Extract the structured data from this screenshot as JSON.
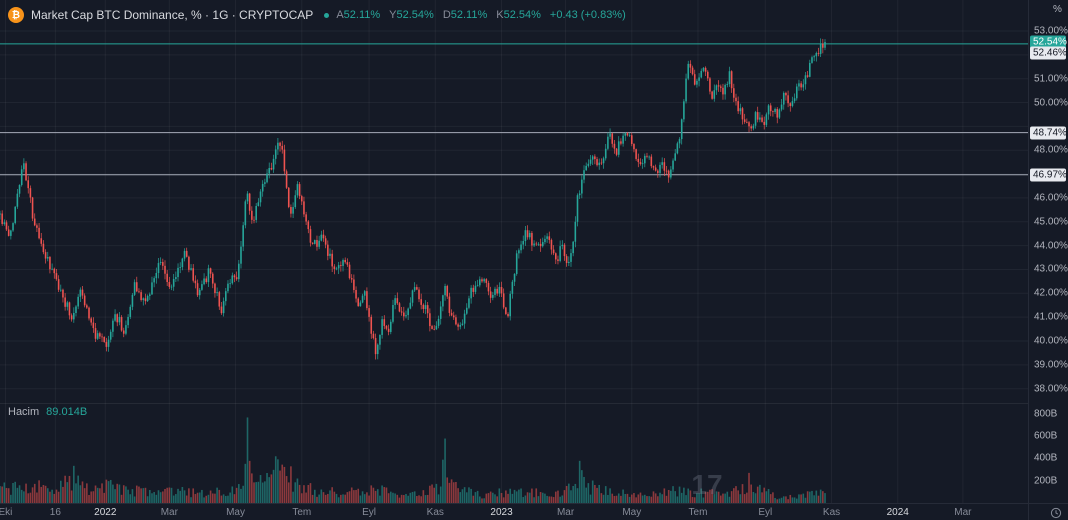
{
  "theme": {
    "bg": "#151a26",
    "grid": "rgba(255,255,255,0.05)",
    "up": "#26a69a",
    "down": "#ef5350",
    "up_vol": "rgba(38,166,154,0.55)",
    "down_vol": "rgba(239,83,80,0.55)",
    "axis_text": "#b2b5be",
    "muted_text": "#868b98",
    "title_text": "#d8dadf",
    "year_text": "#d8dadf",
    "accent": "#26a69a",
    "neutral_line": "#a6abb8",
    "label_bg": "#e8eaef",
    "label_text": "#131722",
    "axis_border": "#262b38",
    "btc_orange": "#f7931a",
    "watermark": "rgba(135,143,160,0.3)"
  },
  "legend": {
    "icon_glyph": "₿",
    "symbol_title": "Market Cap BTC Dominance, % · 1G · CRYPTOCAP",
    "ohlc": {
      "open_label": "A",
      "open": "52.11%",
      "high_label": "Y",
      "high": "52.54%",
      "low_label": "D",
      "low": "52.11%",
      "close_label": "K",
      "close": "52.54%",
      "change": "+0.43 (+0.83%)"
    }
  },
  "volume_pane": {
    "label": "Hacim",
    "value": "89.014B"
  },
  "watermark": {
    "text": "17"
  },
  "price_axis": {
    "unit": "%",
    "ticks": [
      "53.00%",
      "52.00%",
      "51.00%",
      "50.00%",
      "49.00%",
      "48.00%",
      "47.00%",
      "46.00%",
      "45.00%",
      "44.00%",
      "43.00%",
      "42.00%",
      "41.00%",
      "40.00%",
      "39.00%",
      "38.00%"
    ],
    "volume_ticks": [
      "800B",
      "600B",
      "400B",
      "200B"
    ],
    "current_label": "52.54%"
  },
  "chart_data": {
    "type": "candlestick",
    "title": "Market Cap BTC Dominance",
    "symbol": "CRYPTOCAP",
    "interval": "1G",
    "unit": "%",
    "x_range": [
      "2021-09-26",
      "2024-04-30"
    ],
    "ylim": [
      37.4,
      54.3
    ],
    "current_price": 52.54,
    "ohlc_last": {
      "open": 52.11,
      "high": 52.54,
      "low": 52.11,
      "close": 52.54,
      "change": 0.43,
      "change_pct": 0.83
    },
    "price_lines": [
      {
        "value": 52.46,
        "label": "52.46%",
        "color": "#26a69a"
      },
      {
        "value": 48.74,
        "label": "48.74%",
        "color": "#a6abb8"
      },
      {
        "value": 46.97,
        "label": "46.97%",
        "color": "#a6abb8"
      }
    ],
    "series_waypoints": [
      [
        "2021-09-26",
        45.3
      ],
      [
        "2021-10-05",
        44.2
      ],
      [
        "2021-10-17",
        47.6
      ],
      [
        "2021-10-28",
        44.8
      ],
      [
        "2021-11-09",
        43.3
      ],
      [
        "2021-11-20",
        42.2
      ],
      [
        "2021-12-01",
        41.0
      ],
      [
        "2021-12-09",
        42.2
      ],
      [
        "2021-12-22",
        40.3
      ],
      [
        "2022-01-03",
        39.7
      ],
      [
        "2022-01-10",
        41.2
      ],
      [
        "2022-01-19",
        40.3
      ],
      [
        "2022-01-28",
        42.4
      ],
      [
        "2022-02-07",
        41.6
      ],
      [
        "2022-02-20",
        43.4
      ],
      [
        "2022-03-02",
        42.2
      ],
      [
        "2022-03-15",
        43.7
      ],
      [
        "2022-03-27",
        42.1
      ],
      [
        "2022-04-07",
        42.9
      ],
      [
        "2022-04-18",
        41.3
      ],
      [
        "2022-04-26",
        42.5
      ],
      [
        "2022-05-03",
        42.8
      ],
      [
        "2022-05-11",
        46.3
      ],
      [
        "2022-05-16",
        44.9
      ],
      [
        "2022-05-25",
        46.6
      ],
      [
        "2022-06-02",
        47.3
      ],
      [
        "2022-06-12",
        48.45
      ],
      [
        "2022-06-20",
        45.1
      ],
      [
        "2022-06-27",
        46.4
      ],
      [
        "2022-07-10",
        43.9
      ],
      [
        "2022-07-20",
        44.4
      ],
      [
        "2022-08-01",
        42.8
      ],
      [
        "2022-08-10",
        43.3
      ],
      [
        "2022-08-22",
        41.5
      ],
      [
        "2022-08-28",
        42.0
      ],
      [
        "2022-09-07",
        39.4
      ],
      [
        "2022-09-13",
        40.9
      ],
      [
        "2022-09-18",
        40.2
      ],
      [
        "2022-09-25",
        41.8
      ],
      [
        "2022-10-04",
        41.0
      ],
      [
        "2022-10-13",
        42.4
      ],
      [
        "2022-10-22",
        41.4
      ],
      [
        "2022-11-01",
        40.3
      ],
      [
        "2022-11-09",
        42.3
      ],
      [
        "2022-11-16",
        41.0
      ],
      [
        "2022-11-25",
        40.6
      ],
      [
        "2022-12-05",
        42.2
      ],
      [
        "2022-12-15",
        42.6
      ],
      [
        "2022-12-23",
        41.8
      ],
      [
        "2022-12-30",
        42.2
      ],
      [
        "2023-01-06",
        40.9
      ],
      [
        "2023-01-15",
        43.5
      ],
      [
        "2023-01-24",
        44.6
      ],
      [
        "2023-02-02",
        43.9
      ],
      [
        "2023-02-12",
        44.4
      ],
      [
        "2023-02-21",
        43.3
      ],
      [
        "2023-02-25",
        44.0
      ],
      [
        "2023-03-05",
        43.1
      ],
      [
        "2023-03-12",
        45.9
      ],
      [
        "2023-03-20",
        47.4
      ],
      [
        "2023-03-26",
        47.9
      ],
      [
        "2023-04-02",
        47.2
      ],
      [
        "2023-04-11",
        48.7
      ],
      [
        "2023-04-17",
        48.0
      ],
      [
        "2023-04-25",
        48.7
      ],
      [
        "2023-05-02",
        48.2
      ],
      [
        "2023-05-08",
        47.4
      ],
      [
        "2023-05-16",
        47.9
      ],
      [
        "2023-05-22",
        47.0
      ],
      [
        "2023-05-29",
        47.5
      ],
      [
        "2023-06-03",
        46.9
      ],
      [
        "2023-06-09",
        47.5
      ],
      [
        "2023-06-14",
        48.5
      ],
      [
        "2023-06-18",
        50.0
      ],
      [
        "2023-06-22",
        51.8
      ],
      [
        "2023-06-27",
        50.9
      ],
      [
        "2023-07-03",
        51.3
      ],
      [
        "2023-07-08",
        51.5
      ],
      [
        "2023-07-14",
        50.2
      ],
      [
        "2023-07-19",
        50.9
      ],
      [
        "2023-07-25",
        50.4
      ],
      [
        "2023-07-30",
        51.1
      ],
      [
        "2023-08-06",
        49.9
      ],
      [
        "2023-08-12",
        49.2
      ],
      [
        "2023-08-19",
        48.9
      ],
      [
        "2023-08-24",
        49.5
      ],
      [
        "2023-08-30",
        49.1
      ],
      [
        "2023-09-05",
        49.9
      ],
      [
        "2023-09-12",
        49.5
      ],
      [
        "2023-09-18",
        50.3
      ],
      [
        "2023-09-25",
        50.0
      ],
      [
        "2023-10-01",
        50.7
      ],
      [
        "2023-10-07",
        51.0
      ],
      [
        "2023-10-12",
        51.5
      ],
      [
        "2023-10-17",
        52.1
      ],
      [
        "2023-10-21",
        52.3
      ],
      [
        "2023-10-26",
        52.54
      ]
    ],
    "volume": {
      "unit": "B",
      "ylim": [
        0,
        880
      ],
      "last": 89.014,
      "waypoints": [
        [
          "2021-09-26",
          130
        ],
        [
          "2021-10-20",
          150
        ],
        [
          "2021-11-15",
          120
        ],
        [
          "2021-12-04",
          230
        ],
        [
          "2021-12-20",
          110
        ],
        [
          "2022-01-06",
          150
        ],
        [
          "2022-01-25",
          120
        ],
        [
          "2022-02-15",
          95
        ],
        [
          "2022-03-10",
          105
        ],
        [
          "2022-04-10",
          85
        ],
        [
          "2022-05-06",
          150
        ],
        [
          "2022-05-09",
          170
        ],
        [
          "2022-05-12",
          800
        ],
        [
          "2022-05-15",
          210
        ],
        [
          "2022-05-22",
          160
        ],
        [
          "2022-06-13",
          330
        ],
        [
          "2022-06-25",
          170
        ],
        [
          "2022-07-15",
          110
        ],
        [
          "2022-08-10",
          95
        ],
        [
          "2022-09-07",
          120
        ],
        [
          "2022-09-25",
          80
        ],
        [
          "2022-10-15",
          70
        ],
        [
          "2022-11-06",
          140
        ],
        [
          "2022-11-09",
          560
        ],
        [
          "2022-11-10",
          540
        ],
        [
          "2022-11-13",
          170
        ],
        [
          "2022-11-22",
          120
        ],
        [
          "2022-12-10",
          75
        ],
        [
          "2023-01-10",
          95
        ],
        [
          "2023-02-10",
          85
        ],
        [
          "2023-03-10",
          140
        ],
        [
          "2023-03-13",
          280
        ],
        [
          "2023-03-17",
          170
        ],
        [
          "2023-03-28",
          130
        ],
        [
          "2023-04-15",
          90
        ],
        [
          "2023-05-10",
          65
        ],
        [
          "2023-06-15",
          110
        ],
        [
          "2023-07-10",
          80
        ],
        [
          "2023-08-14",
          120
        ],
        [
          "2023-08-17",
          185
        ],
        [
          "2023-09-10",
          55
        ],
        [
          "2023-10-05",
          65
        ],
        [
          "2023-10-26",
          89
        ]
      ]
    },
    "time_ticks": [
      {
        "label": "Eki",
        "date": "2021-10-01",
        "year": false
      },
      {
        "label": "16",
        "date": "2021-11-16",
        "year": false
      },
      {
        "label": "2022",
        "date": "2022-01-01",
        "year": true
      },
      {
        "label": "Mar",
        "date": "2022-03-01",
        "year": false
      },
      {
        "label": "May",
        "date": "2022-05-01",
        "year": false
      },
      {
        "label": "Tem",
        "date": "2022-07-01",
        "year": false
      },
      {
        "label": "Eyl",
        "date": "2022-09-01",
        "year": false
      },
      {
        "label": "Kas",
        "date": "2022-11-01",
        "year": false
      },
      {
        "label": "2023",
        "date": "2023-01-01",
        "year": true
      },
      {
        "label": "Mar",
        "date": "2023-03-01",
        "year": false
      },
      {
        "label": "May",
        "date": "2023-05-01",
        "year": false
      },
      {
        "label": "Tem",
        "date": "2023-07-01",
        "year": false
      },
      {
        "label": "Eyl",
        "date": "2023-09-01",
        "year": false
      },
      {
        "label": "Kas",
        "date": "2023-11-01",
        "year": false
      },
      {
        "label": "2024",
        "date": "2024-01-01",
        "year": true
      },
      {
        "label": "Mar",
        "date": "2024-03-01",
        "year": false
      }
    ]
  }
}
